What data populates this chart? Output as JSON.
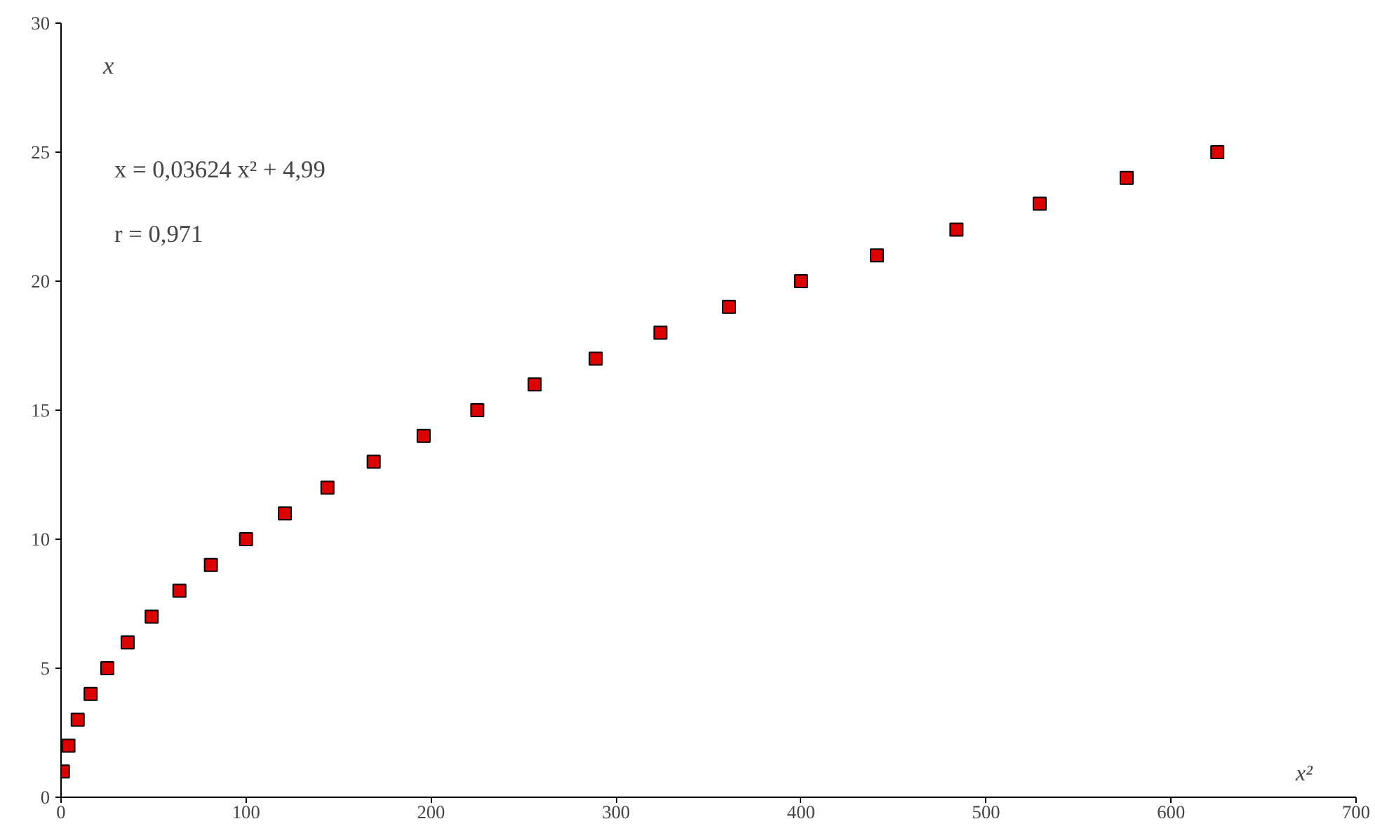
{
  "chart_data": {
    "type": "scatter",
    "xlabel": "x²",
    "ylabel": "x",
    "annotations": [
      "x  = 0,03624 x² + 4,99",
      "r  = 0,971"
    ],
    "x": [
      1,
      4,
      9,
      16,
      25,
      36,
      49,
      64,
      81,
      100,
      121,
      144,
      169,
      196,
      225,
      256,
      289,
      324,
      361,
      400,
      441,
      484,
      529,
      576,
      625
    ],
    "series": [
      {
        "color": "#dd0000",
        "values": [
          1,
          2,
          3,
          4,
          5,
          6,
          7,
          8,
          9,
          10,
          11,
          12,
          13,
          14,
          15,
          16,
          17,
          18,
          19,
          20,
          21,
          22,
          23,
          24,
          25
        ]
      }
    ],
    "xlim": [
      0,
      700
    ],
    "ylim": [
      0,
      30
    ],
    "xticks": [
      0,
      100,
      200,
      300,
      400,
      500,
      600,
      700
    ],
    "yticks": [
      0,
      5,
      10,
      15,
      20,
      25,
      30
    ],
    "grid": false,
    "marker": "square"
  }
}
